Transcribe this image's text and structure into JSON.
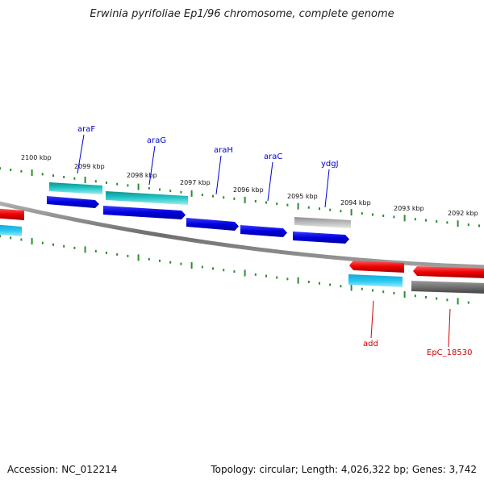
{
  "title": "Erwinia pyrifoliae Ep1/96 chromosome, complete genome",
  "footer": {
    "accession": "Accession: NC_012214",
    "summary": "Topology: circular; Length: 4,026,322 bp; Genes: 3,742"
  },
  "colors": {
    "backbone": "#808080",
    "tick": "#2e8b2e",
    "label_forward": "#0000cc",
    "label_reverse": "#cc0000",
    "forward_gene": "#0000e0",
    "forward_cds": "#1fc4c4",
    "forward_other": "#bcbcbc",
    "reverse_gene": "#ee0000",
    "reverse_cds": "#22c8f0",
    "reverse_other": "#707070"
  },
  "scale": {
    "unit": "kbp",
    "major_ticks": [
      "2100 kbp",
      "2099 kbp",
      "2098 kbp",
      "2097 kbp",
      "2096 kbp",
      "2095 kbp",
      "2094 kbp",
      "2093 kbp",
      "2092 kbp"
    ]
  },
  "features": [
    {
      "name": "araF",
      "strand": "forward",
      "label_color": "forward"
    },
    {
      "name": "araG",
      "strand": "forward",
      "label_color": "forward"
    },
    {
      "name": "araH",
      "strand": "forward",
      "label_color": "forward"
    },
    {
      "name": "araC",
      "strand": "forward",
      "label_color": "forward"
    },
    {
      "name": "ydgJ",
      "strand": "forward",
      "label_color": "forward"
    },
    {
      "name": "add",
      "strand": "reverse",
      "label_color": "reverse"
    },
    {
      "name": "EpC_18530",
      "strand": "reverse",
      "label_color": "reverse"
    }
  ]
}
